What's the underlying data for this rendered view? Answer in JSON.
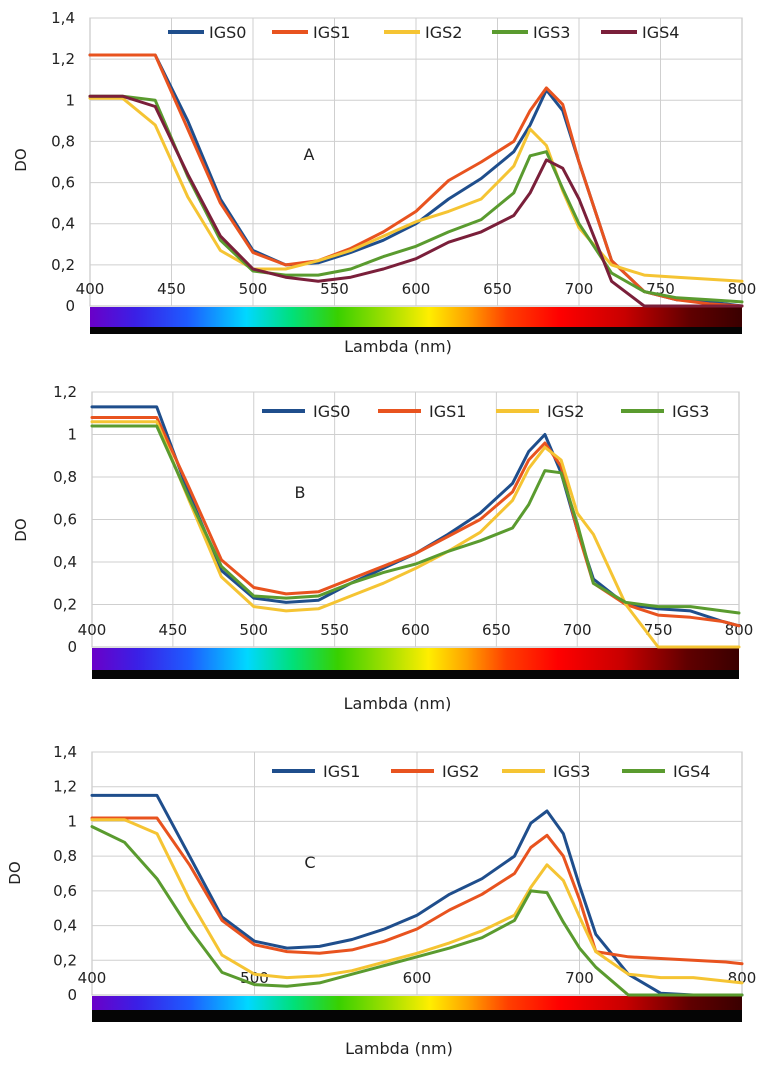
{
  "figure": {
    "charts": [
      {
        "panel_label": "A",
        "ylabel": "DO",
        "xlabel": "Lambda (nm)",
        "y_ticks": [
          "0",
          "0,2",
          "0,4",
          "0,6",
          "0,8",
          "1",
          "1,2",
          "1,4"
        ],
        "x_ticks": [
          "400",
          "450",
          "500",
          "550",
          "600",
          "650",
          "700",
          "750",
          "800"
        ],
        "legend": [
          "IGS0",
          "IGS1",
          "IGS2",
          "IGS3",
          "IGS4"
        ]
      },
      {
        "panel_label": "B",
        "ylabel": "DO",
        "xlabel": "Lambda (nm)",
        "y_ticks": [
          "0",
          "0,2",
          "0,4",
          "0,6",
          "0,8",
          "1",
          "1,2"
        ],
        "x_ticks": [
          "400",
          "450",
          "500",
          "550",
          "600",
          "650",
          "700",
          "750",
          "800"
        ],
        "legend": [
          "IGS0",
          "IGS1",
          "IGS2",
          "IGS3"
        ]
      },
      {
        "panel_label": "C",
        "ylabel": "DO",
        "xlabel": "Lambda (nm)",
        "y_ticks": [
          "0",
          "0,2",
          "0,4",
          "0,6",
          "0,8",
          "1",
          "1,2",
          "1,4"
        ],
        "x_ticks": [
          "400",
          "500",
          "600",
          "700",
          "800"
        ],
        "legend": [
          "IGS1",
          "IGS2",
          "IGS3",
          "IGS4"
        ]
      }
    ]
  },
  "chart_data": [
    {
      "type": "line",
      "xlabel": "Lambda (nm)",
      "ylabel": "DO",
      "xlim": [
        400,
        800
      ],
      "ylim": [
        0,
        1.4
      ],
      "grid": true,
      "legend_position": "top",
      "annotation": "A",
      "series": [
        {
          "name": "IGS0",
          "color": "#1f4e8c",
          "x": [
            400,
            420,
            440,
            460,
            480,
            500,
            520,
            540,
            560,
            580,
            600,
            620,
            640,
            660,
            670,
            680,
            690,
            700,
            720,
            740,
            760,
            780,
            800
          ],
          "y": [
            1.22,
            1.22,
            1.22,
            0.9,
            0.52,
            0.27,
            0.2,
            0.21,
            0.26,
            0.32,
            0.4,
            0.52,
            0.62,
            0.75,
            0.88,
            1.05,
            0.95,
            0.7,
            0.22,
            0.07,
            0.03,
            0.02,
            0.0
          ]
        },
        {
          "name": "IGS1",
          "color": "#e8531f",
          "x": [
            400,
            420,
            440,
            460,
            480,
            500,
            520,
            540,
            560,
            580,
            600,
            620,
            640,
            660,
            670,
            680,
            690,
            700,
            720,
            740,
            760,
            780,
            800
          ],
          "y": [
            1.22,
            1.22,
            1.22,
            0.86,
            0.5,
            0.26,
            0.2,
            0.22,
            0.28,
            0.36,
            0.46,
            0.61,
            0.7,
            0.8,
            0.95,
            1.06,
            0.98,
            0.7,
            0.22,
            0.07,
            0.03,
            0.01,
            0.0
          ]
        },
        {
          "name": "IGS2",
          "color": "#f5c433",
          "x": [
            400,
            420,
            440,
            460,
            480,
            500,
            520,
            540,
            560,
            580,
            600,
            620,
            640,
            660,
            670,
            680,
            690,
            700,
            720,
            740,
            760,
            780,
            800
          ],
          "y": [
            1.01,
            1.01,
            0.88,
            0.53,
            0.27,
            0.18,
            0.18,
            0.22,
            0.27,
            0.34,
            0.41,
            0.46,
            0.52,
            0.68,
            0.86,
            0.78,
            0.56,
            0.38,
            0.2,
            0.15,
            0.14,
            0.13,
            0.12
          ]
        },
        {
          "name": "IGS3",
          "color": "#5a9b2f",
          "x": [
            400,
            420,
            440,
            460,
            480,
            500,
            520,
            540,
            560,
            580,
            600,
            620,
            640,
            660,
            670,
            680,
            690,
            700,
            720,
            740,
            760,
            780,
            800
          ],
          "y": [
            1.02,
            1.02,
            1.0,
            0.63,
            0.32,
            0.17,
            0.15,
            0.15,
            0.18,
            0.24,
            0.29,
            0.36,
            0.42,
            0.55,
            0.73,
            0.75,
            0.57,
            0.4,
            0.16,
            0.07,
            0.04,
            0.03,
            0.02
          ]
        },
        {
          "name": "IGS4",
          "color": "#7a1f3a",
          "x": [
            400,
            420,
            440,
            460,
            480,
            500,
            520,
            540,
            560,
            580,
            600,
            620,
            640,
            660,
            670,
            680,
            690,
            700,
            720,
            740,
            760,
            780,
            800
          ],
          "y": [
            1.02,
            1.02,
            0.97,
            0.64,
            0.34,
            0.18,
            0.14,
            0.12,
            0.14,
            0.18,
            0.23,
            0.31,
            0.36,
            0.44,
            0.55,
            0.71,
            0.67,
            0.52,
            0.12,
            0.0,
            0.0,
            0.0,
            0.0
          ]
        }
      ]
    },
    {
      "type": "line",
      "xlabel": "Lambda (nm)",
      "ylabel": "DO",
      "xlim": [
        400,
        800
      ],
      "ylim": [
        0,
        1.2
      ],
      "grid": true,
      "legend_position": "top",
      "annotation": "B",
      "series": [
        {
          "name": "IGS0",
          "color": "#1f4e8c",
          "x": [
            400,
            420,
            440,
            460,
            480,
            500,
            520,
            540,
            560,
            580,
            600,
            620,
            640,
            660,
            670,
            680,
            690,
            700,
            710,
            730,
            750,
            770,
            790,
            800
          ],
          "y": [
            1.13,
            1.13,
            1.13,
            0.72,
            0.36,
            0.23,
            0.21,
            0.22,
            0.3,
            0.37,
            0.44,
            0.53,
            0.63,
            0.77,
            0.92,
            1.0,
            0.82,
            0.55,
            0.32,
            0.2,
            0.18,
            0.17,
            0.12,
            0.1
          ]
        },
        {
          "name": "IGS1",
          "color": "#e8531f",
          "x": [
            400,
            420,
            440,
            460,
            480,
            500,
            520,
            540,
            560,
            580,
            600,
            620,
            640,
            660,
            670,
            680,
            690,
            700,
            710,
            730,
            750,
            770,
            790,
            800
          ],
          "y": [
            1.08,
            1.08,
            1.08,
            0.75,
            0.41,
            0.28,
            0.25,
            0.26,
            0.32,
            0.38,
            0.44,
            0.52,
            0.6,
            0.73,
            0.88,
            0.96,
            0.85,
            0.55,
            0.3,
            0.2,
            0.15,
            0.14,
            0.12,
            0.1
          ]
        },
        {
          "name": "IGS2",
          "color": "#f5c433",
          "x": [
            400,
            420,
            440,
            460,
            480,
            500,
            520,
            540,
            560,
            580,
            600,
            620,
            640,
            660,
            670,
            680,
            690,
            700,
            710,
            730,
            750,
            770,
            790,
            800
          ],
          "y": [
            1.06,
            1.06,
            1.06,
            0.69,
            0.33,
            0.19,
            0.17,
            0.18,
            0.24,
            0.3,
            0.37,
            0.45,
            0.54,
            0.69,
            0.84,
            0.94,
            0.88,
            0.63,
            0.53,
            0.2,
            0.0,
            0.0,
            0.0,
            0.0
          ]
        },
        {
          "name": "IGS3",
          "color": "#5a9b2f",
          "x": [
            400,
            420,
            440,
            460,
            480,
            500,
            520,
            540,
            560,
            580,
            600,
            620,
            640,
            660,
            670,
            680,
            690,
            700,
            710,
            730,
            750,
            770,
            790,
            800
          ],
          "y": [
            1.04,
            1.04,
            1.04,
            0.7,
            0.38,
            0.24,
            0.23,
            0.24,
            0.3,
            0.35,
            0.39,
            0.45,
            0.5,
            0.56,
            0.67,
            0.83,
            0.82,
            0.58,
            0.3,
            0.21,
            0.19,
            0.19,
            0.17,
            0.16
          ]
        }
      ]
    },
    {
      "type": "line",
      "xlabel": "Lambda (nm)",
      "ylabel": "DO",
      "xlim": [
        400,
        800
      ],
      "ylim": [
        0,
        1.4
      ],
      "grid": true,
      "legend_position": "top",
      "annotation": "C",
      "series": [
        {
          "name": "IGS1",
          "color": "#1f4e8c",
          "x": [
            400,
            420,
            440,
            460,
            480,
            500,
            520,
            540,
            560,
            580,
            600,
            620,
            640,
            660,
            670,
            680,
            690,
            700,
            710,
            730,
            750,
            770,
            790,
            800
          ],
          "y": [
            1.15,
            1.15,
            1.15,
            0.8,
            0.45,
            0.31,
            0.27,
            0.28,
            0.32,
            0.38,
            0.46,
            0.58,
            0.67,
            0.8,
            0.99,
            1.06,
            0.93,
            0.63,
            0.35,
            0.12,
            0.01,
            0.0,
            0.0,
            0.0
          ]
        },
        {
          "name": "IGS2",
          "color": "#e8531f",
          "x": [
            400,
            420,
            440,
            460,
            480,
            500,
            520,
            540,
            560,
            580,
            600,
            620,
            640,
            660,
            670,
            680,
            690,
            700,
            710,
            730,
            750,
            770,
            790,
            800
          ],
          "y": [
            1.02,
            1.02,
            1.02,
            0.75,
            0.43,
            0.29,
            0.25,
            0.24,
            0.26,
            0.31,
            0.38,
            0.49,
            0.58,
            0.7,
            0.85,
            0.92,
            0.8,
            0.55,
            0.25,
            0.22,
            0.21,
            0.2,
            0.19,
            0.18
          ]
        },
        {
          "name": "IGS3",
          "color": "#f5c433",
          "x": [
            400,
            420,
            440,
            460,
            480,
            500,
            520,
            540,
            560,
            580,
            600,
            620,
            640,
            660,
            670,
            680,
            690,
            700,
            710,
            730,
            750,
            770,
            790,
            800
          ],
          "y": [
            1.01,
            1.01,
            0.93,
            0.55,
            0.23,
            0.12,
            0.1,
            0.11,
            0.14,
            0.19,
            0.24,
            0.3,
            0.37,
            0.46,
            0.62,
            0.75,
            0.66,
            0.45,
            0.25,
            0.12,
            0.1,
            0.1,
            0.08,
            0.07
          ]
        },
        {
          "name": "IGS4",
          "color": "#5a9b2f",
          "x": [
            400,
            420,
            440,
            460,
            480,
            500,
            520,
            540,
            560,
            580,
            600,
            620,
            640,
            660,
            670,
            680,
            690,
            700,
            710,
            730,
            750,
            770,
            790,
            800
          ],
          "y": [
            0.97,
            0.88,
            0.67,
            0.38,
            0.13,
            0.06,
            0.05,
            0.07,
            0.12,
            0.17,
            0.22,
            0.27,
            0.33,
            0.43,
            0.6,
            0.59,
            0.42,
            0.27,
            0.16,
            0.0,
            0.0,
            0.0,
            0.0,
            0.0
          ]
        }
      ]
    }
  ]
}
